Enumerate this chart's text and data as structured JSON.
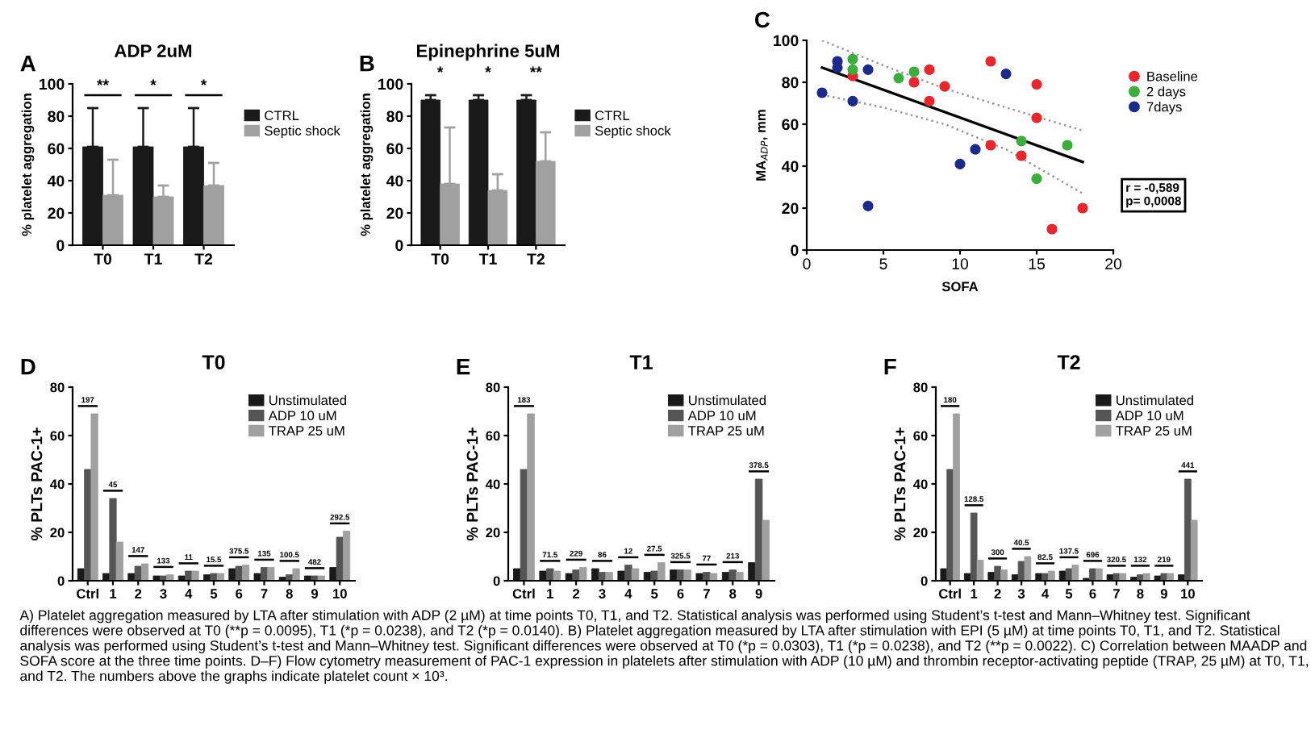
{
  "chart_data": [
    {
      "type": "bar",
      "title": "ADP 2uM",
      "ylabel": "% platelet aggregation",
      "categories": [
        "T0",
        "T1",
        "T2"
      ],
      "series": [
        {
          "name": "CTRL",
          "color": "#1a1a1a",
          "values": [
            61,
            61,
            61
          ],
          "errors": [
            [
              61,
              85
            ],
            [
              61,
              85
            ],
            [
              61,
              85
            ]
          ]
        },
        {
          "name": "Septic shock",
          "color": "#a0a0a0",
          "values": [
            31,
            30,
            37
          ],
          "errors": [
            [
              31,
              53
            ],
            [
              30,
              37
            ],
            [
              37,
              51
            ]
          ]
        }
      ],
      "ylim": [
        0,
        100
      ],
      "yticks": [
        0,
        20,
        40,
        60,
        80,
        100
      ],
      "legend": "right",
      "grid": false,
      "annotations": [
        "A",
        "**",
        "*",
        "*"
      ]
    },
    {
      "type": "bar",
      "title": "Epinephrine 5uM",
      "ylabel": "% platelet aggregation",
      "categories": [
        "T0",
        "T1",
        "T2"
      ],
      "series": [
        {
          "name": "CTRL",
          "color": "#1a1a1a",
          "values": [
            90,
            90,
            90
          ],
          "errors": [
            [
              90,
              93
            ],
            [
              90,
              93
            ],
            [
              90,
              93
            ]
          ]
        },
        {
          "name": "Septic shock",
          "color": "#a0a0a0",
          "values": [
            38,
            34,
            52
          ],
          "errors": [
            [
              38,
              73
            ],
            [
              34,
              44
            ],
            [
              52,
              70
            ]
          ]
        }
      ],
      "ylim": [
        0,
        100
      ],
      "yticks": [
        0,
        20,
        40,
        60,
        80,
        100
      ],
      "legend": "right",
      "grid": false,
      "annotations": [
        "B",
        "*",
        "*",
        "**"
      ]
    },
    {
      "type": "scatter",
      "xlabel": "SOFA",
      "ylabel": "MA$_{ADP}$, mm",
      "series": [
        {
          "name": "Baseline",
          "marker": "circle",
          "color": "#e8262c",
          "x": [
            3,
            7,
            8,
            8,
            9,
            12,
            12,
            14,
            15,
            15,
            16,
            18
          ],
          "values": [
            83,
            80,
            86,
            71,
            78,
            90,
            50,
            45,
            79,
            63,
            10,
            20
          ]
        },
        {
          "name": "2 days",
          "marker": "circle",
          "color": "#3cae3c",
          "x": [
            3,
            3,
            6,
            7,
            14,
            15,
            17
          ],
          "values": [
            91,
            86,
            82,
            85,
            52,
            34,
            50
          ]
        },
        {
          "name": "7days",
          "marker": "circle",
          "color": "#1c2a8c",
          "x": [
            1,
            2,
            2,
            3,
            4,
            4,
            10,
            11,
            13
          ],
          "values": [
            75,
            90,
            87,
            71,
            86,
            21,
            41,
            48,
            84
          ]
        },
        {
          "type": "line",
          "color": "#000000",
          "x": [
            1,
            18
          ],
          "values": [
            87,
            42
          ],
          "line_style": "solid"
        },
        {
          "type": "line",
          "color": "#999999",
          "x": [
            1,
            5,
            9,
            13,
            18
          ],
          "values": [
            100,
            88,
            77,
            68,
            57
          ],
          "line_style": "dotted"
        },
        {
          "type": "line",
          "color": "#999999",
          "x": [
            1,
            5,
            9,
            13,
            18
          ],
          "values": [
            74,
            68,
            60,
            48,
            27
          ],
          "line_style": "dotted"
        }
      ],
      "xlim": [
        0,
        20
      ],
      "xticks": [
        0,
        5,
        10,
        15,
        20
      ],
      "ylim": [
        0,
        100
      ],
      "yticks": [
        0,
        20,
        40,
        60,
        80,
        100
      ],
      "legend": "right",
      "grid": false,
      "annotations": [
        "C",
        "r = -0,589\np= 0,0008"
      ]
    },
    {
      "type": "bar",
      "title": "T0",
      "ylabel": "% PLTs PAC-1+",
      "categories": [
        "Ctrl",
        "1",
        "2",
        "3",
        "4",
        "5",
        "6",
        "7",
        "8",
        "9",
        "10"
      ],
      "series": [
        {
          "name": "Unstimulated",
          "color": "#1a1a1a",
          "values": [
            5,
            3,
            3,
            2,
            2,
            2.5,
            5,
            3,
            1.5,
            2,
            5.5
          ]
        },
        {
          "name": "ADP 10 uM",
          "color": "#555555",
          "values": [
            46,
            34,
            6,
            2,
            4,
            3,
            6,
            5.5,
            2.5,
            2,
            18
          ]
        },
        {
          "name": "TRAP 25 uM",
          "color": "#a0a0a0",
          "values": [
            69,
            16,
            7,
            2.5,
            4,
            3,
            6.5,
            5.5,
            5,
            2,
            20.5
          ]
        }
      ],
      "ylim": [
        0,
        80
      ],
      "yticks": [
        0,
        20,
        40,
        60,
        80
      ],
      "legend": "top right",
      "grid": false,
      "annotations": [
        "D",
        "197",
        "45",
        "147",
        "133",
        "11",
        "15.5",
        "375.5",
        "135",
        "100.5",
        "482",
        "292.5"
      ]
    },
    {
      "type": "bar",
      "title": "T1",
      "ylabel": "% PLTs PAC-1+",
      "categories": [
        "Ctrl",
        "1",
        "2",
        "3",
        "4",
        "5",
        "6",
        "7",
        "8",
        "9"
      ],
      "series": [
        {
          "name": "Unstimulated",
          "color": "#1a1a1a",
          "values": [
            5,
            4,
            3,
            5,
            4,
            3.5,
            4.5,
            3,
            3.5,
            7.5
          ]
        },
        {
          "name": "ADP 10 uM",
          "color": "#555555",
          "values": [
            46,
            5,
            4.5,
            3.5,
            6.5,
            4,
            4.5,
            3.5,
            4.5,
            42
          ]
        },
        {
          "name": "TRAP 25 uM",
          "color": "#a0a0a0",
          "values": [
            69,
            4,
            5.5,
            3.5,
            5,
            7.5,
            4.5,
            3,
            3.5,
            25
          ]
        }
      ],
      "ylim": [
        0,
        80
      ],
      "yticks": [
        0,
        20,
        40,
        60,
        80
      ],
      "legend": "top right",
      "grid": false,
      "annotations": [
        "E",
        "183",
        "71.5",
        "229",
        "86",
        "12",
        "27.5",
        "325.5",
        "77",
        "213",
        "378.5"
      ]
    },
    {
      "type": "bar",
      "title": "T2",
      "ylabel": "% PLTs PAC-1+",
      "categories": [
        "Ctrl",
        "1",
        "2",
        "3",
        "4",
        "5",
        "6",
        "7",
        "8",
        "9",
        "10"
      ],
      "series": [
        {
          "name": "Unstimulated",
          "color": "#1a1a1a",
          "values": [
            5,
            3,
            3.5,
            2.5,
            3,
            4,
            1,
            2.5,
            1.5,
            2,
            2.5
          ]
        },
        {
          "name": "ADP 10 uM",
          "color": "#555555",
          "values": [
            46,
            28,
            6,
            8,
            3,
            5,
            5,
            3,
            2.5,
            3,
            42
          ]
        },
        {
          "name": "TRAP 25 uM",
          "color": "#a0a0a0",
          "values": [
            69,
            8.5,
            4.5,
            10,
            4,
            6.5,
            5,
            3,
            3,
            3,
            25
          ]
        }
      ],
      "ylim": [
        0,
        80
      ],
      "yticks": [
        0,
        20,
        40,
        60,
        80
      ],
      "legend": "top right",
      "grid": false,
      "annotations": [
        "F",
        "180",
        "128.5",
        "300",
        "40.5",
        "82.5",
        "137.5",
        "696",
        "320.5",
        "132",
        "219",
        "441",
        "A) Platelet aggregation measured by LTA after stimulation with ADP (2 µM) at time points T0, T1, and T2. Statistical analysis was performed using Student’s t-test and Mann–Whitney test. Significant differences were observed at T0 (**p = 0.0095), T1 (*p = 0.0238), and T2 (*p = 0.0140). B) Platelet aggregation measured by LTA after stimulation with EPI (5 µM) at time points T0, T1, and T2. Statistical analysis was performed using Student’s t-test and Mann–Whitney test. Significant differences were observed at T0 (*p = 0.0303), T1 (*p = 0.0238), and T2 (**p = 0.0022). C) Correlation between MAADP and SOFA score at the three time points. D–F) Flow cytometry measurement of PAC-1 expression in platelets after stimulation with ADP (10 µM) and thrombin receptor-activating peptide (TRAP, 25 µM) at T0, T1, and T2. The numbers above the graphs indicate platelet count × 10³."
      ]
    }
  ]
}
